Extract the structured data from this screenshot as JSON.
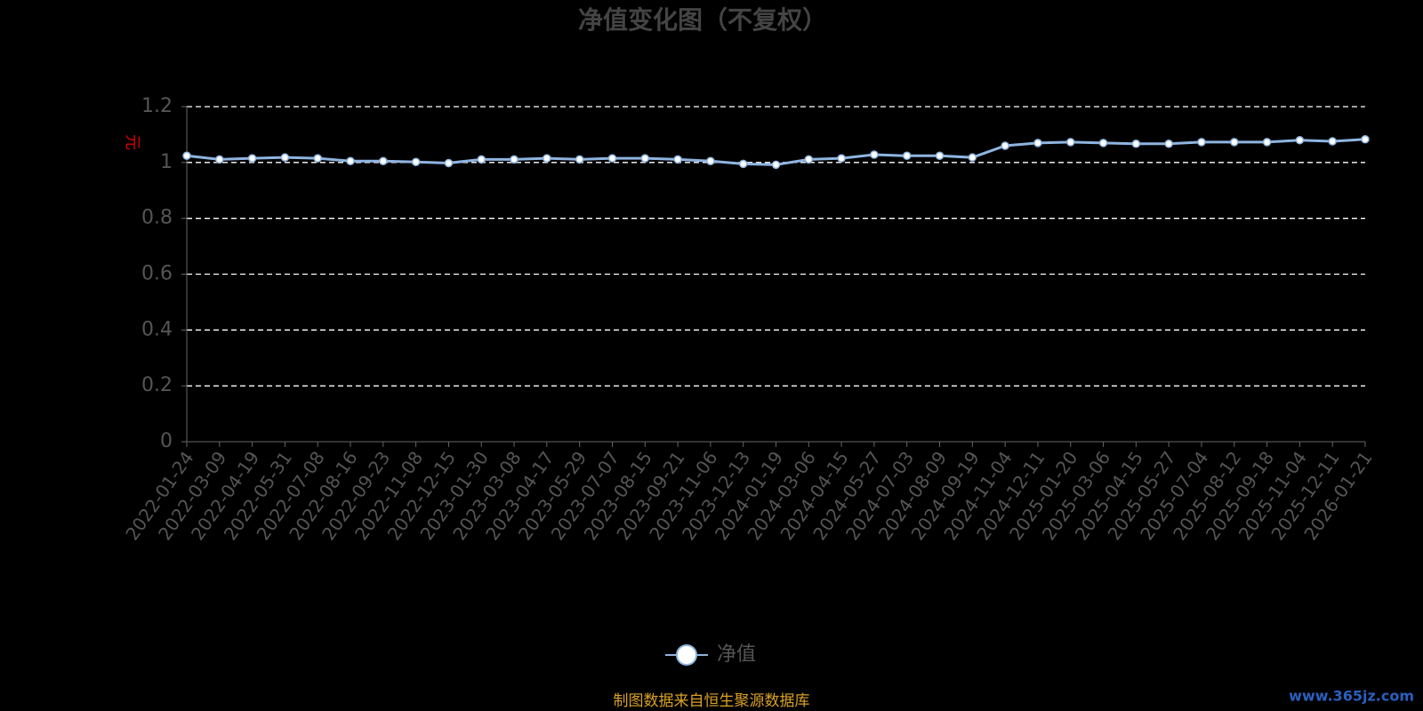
{
  "chart_data": {
    "type": "line",
    "title": "净值变化图（不复权）",
    "ylabel": "元",
    "categories": [
      "2022-01-24",
      "2022-03-09",
      "2022-04-19",
      "2022-05-31",
      "2022-07-08",
      "2022-08-16",
      "2022-09-23",
      "2022-11-08",
      "2022-12-15",
      "2023-01-30",
      "2023-03-08",
      "2023-04-17",
      "2023-05-29",
      "2023-07-07",
      "2023-08-15",
      "2023-09-21",
      "2023-11-06",
      "2023-12-13",
      "2024-01-19",
      "2024-03-06",
      "2024-04-15",
      "2024-05-27",
      "2024-07-03",
      "2024-08-09",
      "2024-09-19",
      "2024-11-04",
      "2024-12-11",
      "2025-01-20",
      "2025-03-06",
      "2025-04-15",
      "2025-05-27",
      "2025-07-04",
      "2025-08-12",
      "2025-09-18",
      "2025-11-04",
      "2025-12-11",
      "2026-01-21"
    ],
    "series": [
      {
        "name": "净值",
        "color": "#8fb4e0",
        "values": [
          1.024,
          1.011,
          1.015,
          1.018,
          1.015,
          1.005,
          1.005,
          1.002,
          0.998,
          1.011,
          1.011,
          1.015,
          1.011,
          1.015,
          1.015,
          1.011,
          1.005,
          0.995,
          0.992,
          1.011,
          1.015,
          1.028,
          1.024,
          1.024,
          1.018,
          1.06,
          1.07,
          1.073,
          1.07,
          1.067,
          1.067,
          1.073,
          1.073,
          1.073,
          1.08,
          1.076,
          1.083
        ]
      }
    ],
    "ylim": [
      0,
      1.2
    ],
    "yticks": [
      0,
      0.2,
      0.4,
      0.6,
      0.8,
      1,
      1.2
    ],
    "grid": true,
    "legend": "bottom",
    "source": "制图数据来自恒生聚源数据库",
    "watermark": "www.365jz.com"
  }
}
